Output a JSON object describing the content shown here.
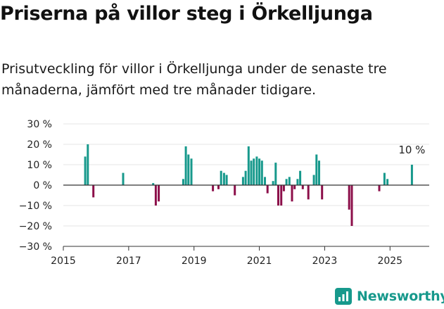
{
  "page": {
    "title": "Priserna på villor steg i Örkelljunga",
    "subtitle": "Prisutveckling för villor i Örkelljunga under de senaste tre månaderna, jämfört med tre månader tidigare.",
    "brand": "Newsworthy"
  },
  "colors": {
    "positive": "#17998c",
    "negative": "#8c0f4a",
    "axis": "#333333",
    "grid": "#e6e6e6",
    "text": "#222222"
  },
  "chart_data": {
    "type": "bar",
    "title": "Priserna på villor steg i Örkelljunga",
    "subtitle": "Prisutveckling för villor i Örkelljunga under de senaste tre månaderna, jämfört med tre månader tidigare.",
    "xlabel": "",
    "ylabel": "",
    "unit": "%",
    "xlim": [
      2015,
      2026.2
    ],
    "ylim": [
      -30,
      30
    ],
    "yticks": [
      -30,
      -20,
      -10,
      0,
      10,
      20,
      30
    ],
    "ytick_labels": [
      "−30 %",
      "−20 %",
      "−10 %",
      "0 %",
      "10 %",
      "20 %",
      "30 %"
    ],
    "xticks": [
      2015,
      2017,
      2019,
      2021,
      2023,
      2025
    ],
    "xtick_labels": [
      "2015",
      "2017",
      "2019",
      "2021",
      "2023",
      "2025"
    ],
    "grid": true,
    "annotation": {
      "x": 2025.67,
      "value": 10,
      "label": "10 %"
    },
    "x": [
      2015.67,
      2015.75,
      2015.92,
      2016.83,
      2017.75,
      2017.83,
      2017.92,
      2018.67,
      2018.75,
      2018.83,
      2018.92,
      2019.58,
      2019.75,
      2019.83,
      2019.92,
      2020.0,
      2020.25,
      2020.5,
      2020.58,
      2020.67,
      2020.75,
      2020.83,
      2020.92,
      2021.0,
      2021.08,
      2021.17,
      2021.25,
      2021.42,
      2021.5,
      2021.58,
      2021.67,
      2021.75,
      2021.83,
      2021.92,
      2022.0,
      2022.08,
      2022.17,
      2022.25,
      2022.33,
      2022.5,
      2022.67,
      2022.75,
      2022.83,
      2022.92,
      2023.75,
      2023.83,
      2024.67,
      2024.83,
      2024.92,
      2025.67
    ],
    "values": [
      14,
      20,
      -6,
      6,
      1,
      -10,
      -8,
      3,
      19,
      15,
      13,
      -3,
      -2,
      7,
      6,
      5,
      -5,
      4,
      7,
      19,
      12,
      13,
      14,
      13,
      12,
      4,
      -4,
      2,
      11,
      -10,
      -10,
      -3,
      3,
      4,
      -8,
      -2,
      3,
      7,
      -2,
      -7,
      5,
      15,
      12,
      -7,
      -12,
      -20,
      -3,
      6,
      3,
      10
    ]
  }
}
